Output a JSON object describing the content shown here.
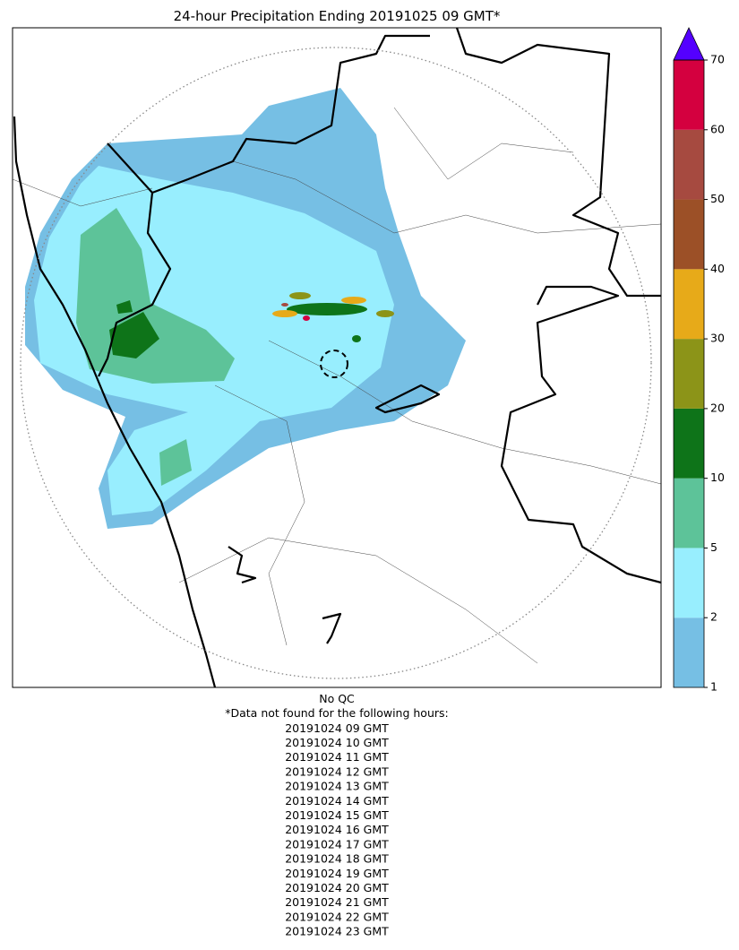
{
  "map": {
    "title": "24-hour Precipitation Ending 20191025 09 GMT*",
    "colorbar": {
      "levels": [
        1,
        2,
        5,
        10,
        20,
        30,
        40,
        50,
        60,
        70
      ],
      "colors": [
        "#76bfe4",
        "#98eefe",
        "#5dc399",
        "#0e7419",
        "#8c9418",
        "#e7aa19",
        "#9c5027",
        "#a64a40",
        "#d4003f"
      ],
      "extend_color": "#5400ff"
    }
  },
  "notes": {
    "qc": "No QC",
    "missing_header": "*Data not found for the following hours:",
    "missing_hours": [
      "20191024 09 GMT",
      "20191024 10 GMT",
      "20191024 11 GMT",
      "20191024 12 GMT",
      "20191024 13 GMT",
      "20191024 14 GMT",
      "20191024 15 GMT",
      "20191024 16 GMT",
      "20191024 17 GMT",
      "20191024 18 GMT",
      "20191024 19 GMT",
      "20191024 20 GMT",
      "20191024 21 GMT",
      "20191024 22 GMT",
      "20191024 23 GMT"
    ]
  }
}
